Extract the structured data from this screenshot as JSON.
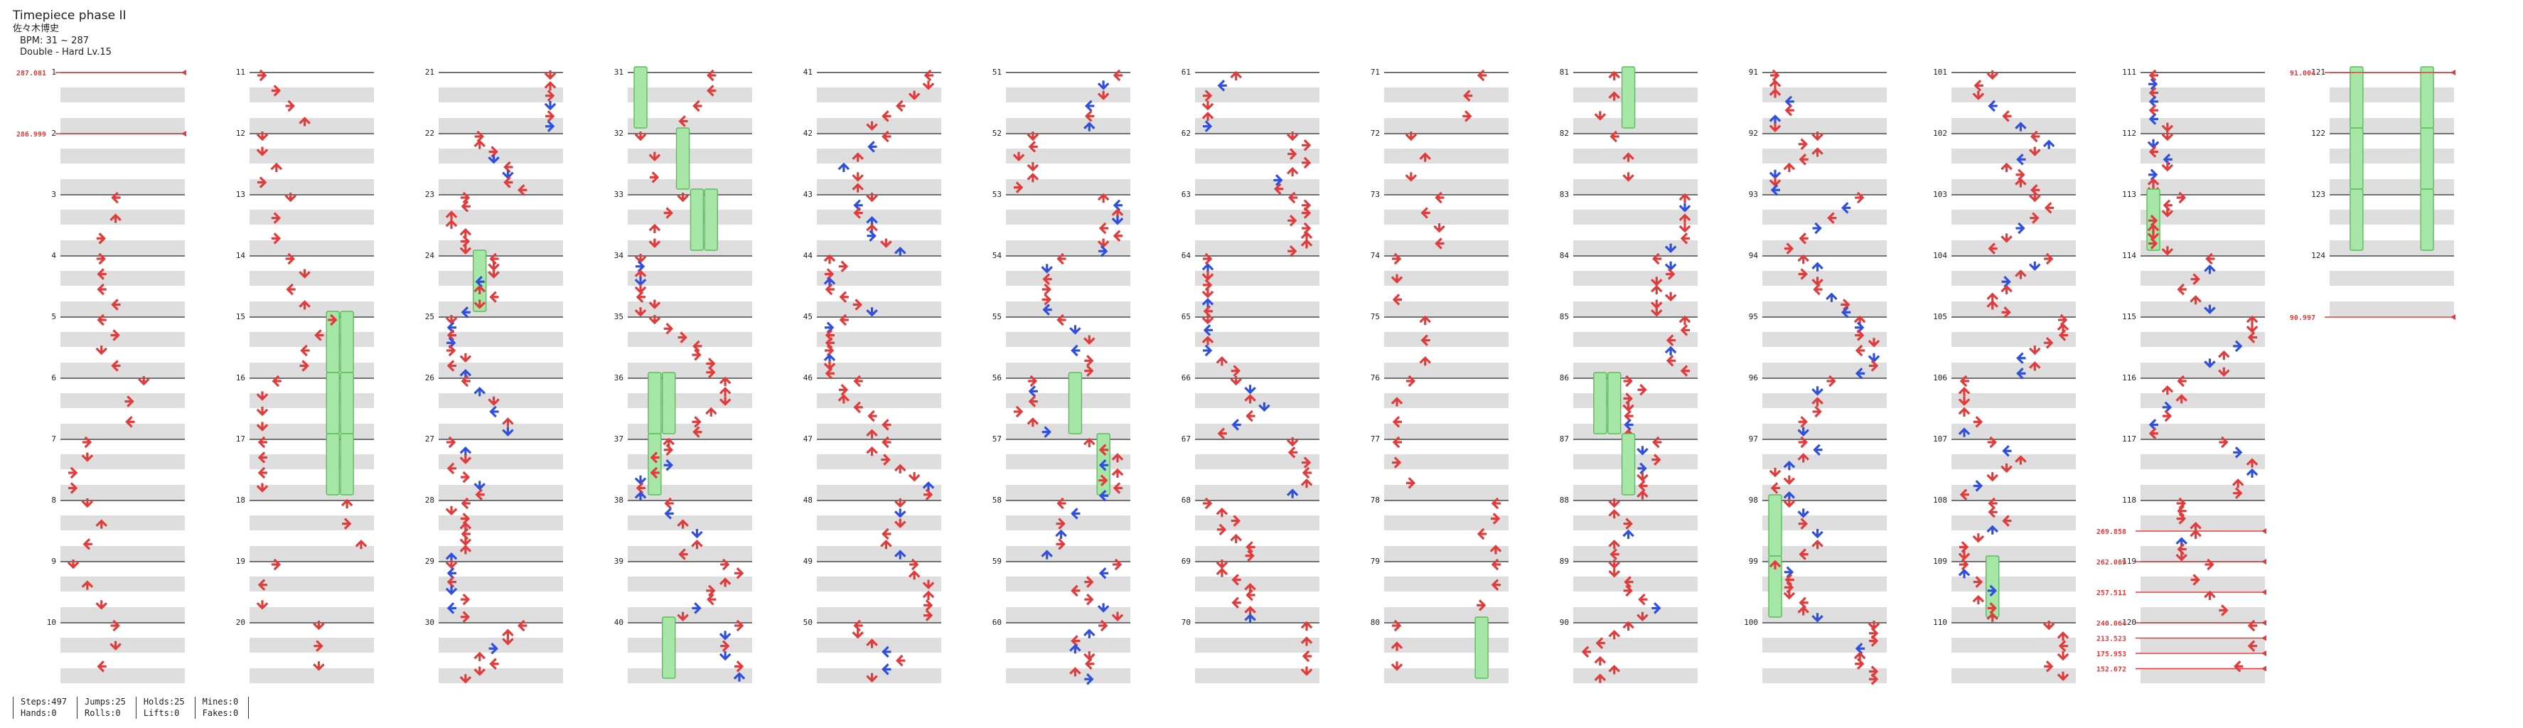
{
  "song": {
    "title": "Timepiece phase II",
    "artist": "佐々木博史",
    "bpm_text": "BPM: 31 ~ 287",
    "chart_text": "Double - Hard  Lv.15"
  },
  "stats": [
    {
      "a": "Steps:497",
      "b": "Hands:0"
    },
    {
      "a": "Jumps:25",
      "b": "Rolls:0"
    },
    {
      "a": "Holds:25",
      "b": "Lifts:0"
    },
    {
      "a": "Mines:0",
      "b": "Fakes:0"
    }
  ],
  "measure_count": 124,
  "bpm_changes": [
    {
      "measure": 1,
      "frac": 0,
      "label": "287.081"
    },
    {
      "measure": 2,
      "frac": 0,
      "label": "286.999"
    },
    {
      "measure": 118,
      "frac": 0.5,
      "label": "269.858"
    },
    {
      "measure": 119,
      "frac": 0,
      "label": "262.089"
    },
    {
      "measure": 119,
      "frac": 0.5,
      "label": "257.511"
    },
    {
      "measure": 120,
      "frac": 0,
      "label": "240.064"
    },
    {
      "measure": 120,
      "frac": 0.25,
      "label": "213.523"
    },
    {
      "measure": 120,
      "frac": 0.5,
      "label": "175.953"
    },
    {
      "measure": 120,
      "frac": 0.75,
      "label": "152.672"
    },
    {
      "measure": 121,
      "frac": 0,
      "label": "91.004"
    },
    {
      "measure": 125,
      "frac": 0,
      "label": "90.997"
    }
  ],
  "colors": {
    "red": "#e23b3b",
    "blue": "#2f4fe0",
    "hold": "#a6e6a6",
    "holdEdge": "#56c056"
  },
  "icons": [
    "left-arrow-icon",
    "down-arrow-icon",
    "up-arrow-icon",
    "right-arrow-icon",
    "hold-note-icon"
  ]
}
